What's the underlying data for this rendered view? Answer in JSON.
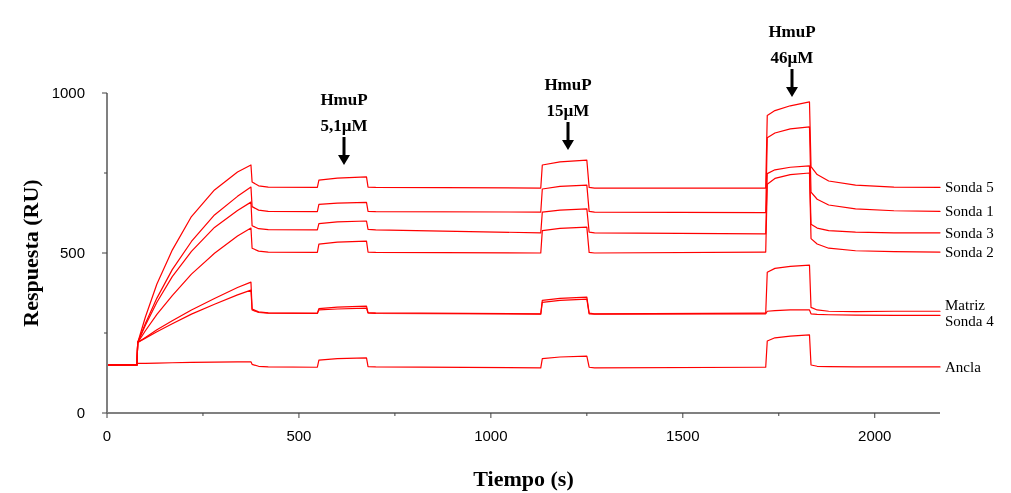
{
  "chart_data": {
    "type": "line",
    "xlabel": "Tiempo (s)",
    "ylabel": "Respuesta (RU)",
    "xlim": [
      0,
      2170
    ],
    "xticks": [
      0,
      {
        "value": 250,
        "label": null
      },
      500,
      {
        "value": 750,
        "label": null
      },
      1000,
      {
        "value": 1250,
        "label": null
      },
      1500,
      {
        "value": 1750,
        "label": null
      },
      2000
    ],
    "ylim": [
      0,
      1000
    ],
    "yticks": [
      0,
      {
        "value": 250,
        "label": null
      },
      500,
      {
        "value": 750,
        "label": null
      },
      1000
    ],
    "grid": false,
    "marker": "none",
    "line_style": "solid",
    "x": [
      0,
      78,
      80,
      100,
      130,
      170,
      220,
      280,
      340,
      375,
      378,
      395,
      420,
      548,
      552,
      600,
      676,
      680,
      700,
      1130,
      1134,
      1180,
      1250,
      1256,
      1270,
      1716,
      1720,
      1740,
      1780,
      1830,
      1834,
      1850,
      1880,
      1950,
      2050,
      2170
    ],
    "series": [
      {
        "name": "Sonda 5",
        "color": "#ff0000",
        "values": [
          150,
          150,
          220,
          300,
          403,
          509,
          614,
          697,
          753,
          775,
          722,
          710,
          706,
          705,
          728,
          734,
          738,
          706,
          705,
          703,
          775,
          785,
          790,
          705,
          703,
          703,
          930,
          945,
          960,
          972,
          770,
          745,
          725,
          712,
          706,
          705
        ]
      },
      {
        "name": "Sonda 1",
        "color": "#ff0000",
        "values": [
          150,
          150,
          220,
          280,
          359,
          448,
          536,
          619,
          677,
          706,
          645,
          634,
          630,
          629,
          652,
          656,
          658,
          630,
          629,
          628,
          700,
          708,
          712,
          630,
          628,
          626,
          860,
          875,
          888,
          894,
          690,
          668,
          650,
          638,
          632,
          630
        ]
      },
      {
        "name": "Sonda 3",
        "color": "#ff0000",
        "values": [
          150,
          150,
          220,
          274,
          346,
          426,
          505,
          580,
          633,
          659,
          585,
          576,
          573,
          572,
          592,
          597,
          600,
          574,
          572,
          563,
          628,
          634,
          638,
          565,
          563,
          560,
          748,
          760,
          768,
          772,
          590,
          578,
          570,
          565,
          563,
          563
        ]
      },
      {
        "name": "Sonda 2",
        "color": "#ff0000",
        "values": [
          150,
          150,
          220,
          257,
          308,
          367,
          434,
          499,
          553,
          578,
          515,
          506,
          503,
          502,
          528,
          534,
          537,
          503,
          502,
          500,
          570,
          577,
          581,
          502,
          500,
          503,
          715,
          733,
          745,
          750,
          545,
          528,
          515,
          507,
          504,
          503
        ]
      },
      {
        "name": "Matriz",
        "color": "#ff0000",
        "values": [
          150,
          150,
          220,
          236,
          260,
          288,
          322,
          358,
          392,
          409,
          325,
          316,
          313,
          312,
          326,
          331,
          334,
          314,
          313,
          310,
          352,
          358,
          362,
          312,
          310,
          312,
          440,
          452,
          458,
          462,
          330,
          322,
          318,
          317,
          318,
          318
        ]
      },
      {
        "name": "Sonda 4",
        "color": "#ff0000",
        "values": [
          150,
          150,
          220,
          234,
          254,
          279,
          309,
          340,
          369,
          384,
          322,
          314,
          312,
          311,
          322,
          325,
          328,
          312,
          311,
          309,
          346,
          352,
          356,
          310,
          309,
          310,
          318,
          320,
          322,
          322,
          310,
          308,
          307,
          306,
          305,
          305
        ]
      },
      {
        "name": "Ancla",
        "color": "#ff0000",
        "values": [
          150,
          150,
          155,
          155,
          156,
          157,
          158,
          159,
          160,
          160,
          152,
          146,
          144,
          143,
          165,
          170,
          172,
          145,
          144,
          141,
          170,
          175,
          178,
          143,
          141,
          143,
          225,
          235,
          240,
          244,
          150,
          146,
          145,
          144,
          144,
          144
        ]
      }
    ],
    "annotations": [
      "HmuP\n5,1µM",
      "HmuP\n15µM",
      "HmuP\n46µM"
    ]
  }
}
